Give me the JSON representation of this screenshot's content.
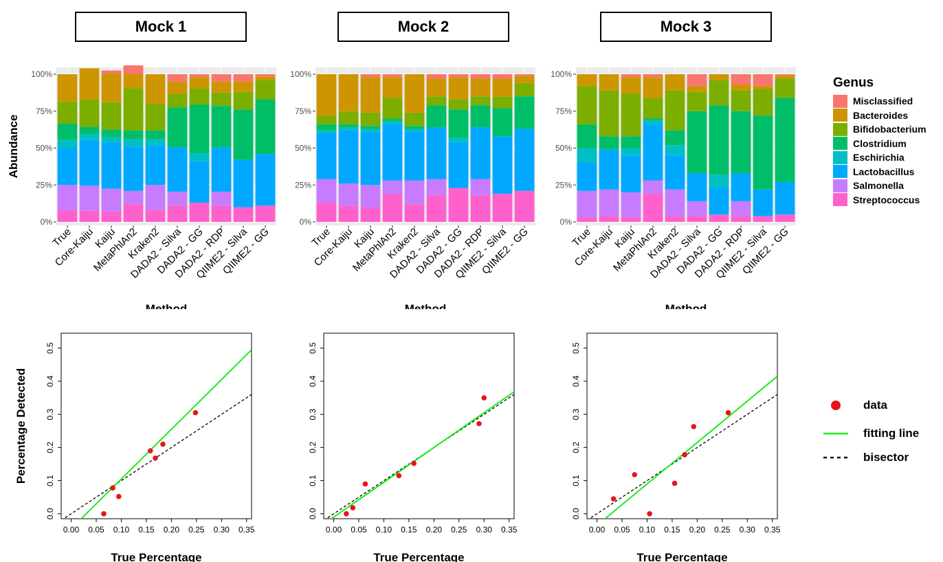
{
  "panels": [
    {
      "title": "Mock 1"
    },
    {
      "title": "Mock 2"
    },
    {
      "title": "Mock 3"
    }
  ],
  "colors": {
    "Misclassified": "#F8766D",
    "Bacteroides": "#CD9600",
    "Bifidobacterium": "#7CAE00",
    "Clostridium": "#00BE67",
    "Eschirichia": "#00BFC4",
    "Lactobacillus": "#00A9FF",
    "Salmonella": "#C77CFF",
    "Streptococcus": "#FF61CC",
    "points": "#e8141a",
    "fit_line": "#1aeb1a",
    "bisector": "#000000"
  },
  "legend": {
    "title": "Genus",
    "items": [
      "Misclassified",
      "Bacteroides",
      "Bifidobacterium",
      "Clostridium",
      "Eschirichia",
      "Lactobacillus",
      "Salmonella",
      "Streptococcus"
    ],
    "scatter_items": [
      {
        "label": "data",
        "symbol": "dot"
      },
      {
        "label": "fitting line",
        "symbol": "green-line"
      },
      {
        "label": "bisector",
        "symbol": "dashed-line"
      }
    ]
  },
  "chart_data": [
    {
      "type": "bar",
      "stacked": true,
      "panel": "Mock 1",
      "xlabel": "Method",
      "ylabel": "Abundance",
      "yticks": [
        "0%",
        "25%",
        "50%",
        "75%",
        "100%"
      ],
      "ylim": [
        0,
        1
      ],
      "categories": [
        "True",
        "Core-Kaiju",
        "Kaiju",
        "MetaPhlAn2",
        "Kraken2",
        "DADA2 - Silva",
        "DADA2 - GG",
        "DADA2 - RDP",
        "QIIME2 - Silva",
        "QIIME2 - GG"
      ],
      "series": [
        {
          "name": "Streptococcus",
          "values": [
            0.08,
            0.075,
            0.07,
            0.12,
            0.08,
            0.11,
            0.13,
            0.11,
            0.1,
            0.11
          ]
        },
        {
          "name": "Salmonella",
          "values": [
            0.17,
            0.17,
            0.155,
            0.09,
            0.17,
            0.095,
            0.0,
            0.095,
            0.0,
            0.0
          ]
        },
        {
          "name": "Lactobacillus",
          "values": [
            0.25,
            0.31,
            0.31,
            0.3,
            0.27,
            0.3,
            0.28,
            0.3,
            0.32,
            0.35
          ]
        },
        {
          "name": "Eschirichia",
          "values": [
            0.055,
            0.04,
            0.04,
            0.05,
            0.04,
            0.0,
            0.055,
            0.0,
            0.0,
            0.0
          ]
        },
        {
          "name": "Clostridium",
          "values": [
            0.11,
            0.05,
            0.05,
            0.06,
            0.06,
            0.27,
            0.33,
            0.28,
            0.34,
            0.37
          ]
        },
        {
          "name": "Bifidobacterium",
          "values": [
            0.15,
            0.185,
            0.185,
            0.285,
            0.18,
            0.09,
            0.11,
            0.09,
            0.12,
            0.13
          ]
        },
        {
          "name": "Bacteroides",
          "values": [
            0.185,
            0.21,
            0.195,
            0.095,
            0.2,
            0.085,
            0.075,
            0.075,
            0.07,
            0.025
          ]
        },
        {
          "name": "Misclassified",
          "values": [
            0.0,
            0.0,
            0.02,
            0.06,
            0.0,
            0.05,
            0.02,
            0.05,
            0.05,
            0.015
          ]
        }
      ]
    },
    {
      "type": "bar",
      "stacked": true,
      "panel": "Mock 2",
      "xlabel": "Method",
      "yticks": [
        "0%",
        "25%",
        "50%",
        "75%",
        "100%"
      ],
      "ylim": [
        0,
        1
      ],
      "categories": [
        "True",
        "Core-Kaiju",
        "Kaiju",
        "MetaPhlAn2",
        "Kraken2",
        "DADA2 - Silva",
        "DADA2 - GG",
        "DADA2 - RDP",
        "QIIME2 - Silva",
        "QIIME2 - GG"
      ],
      "series": [
        {
          "name": "Streptococcus",
          "values": [
            0.13,
            0.11,
            0.1,
            0.19,
            0.12,
            0.18,
            0.23,
            0.18,
            0.19,
            0.21
          ]
        },
        {
          "name": "Salmonella",
          "values": [
            0.16,
            0.15,
            0.15,
            0.09,
            0.16,
            0.11,
            0.0,
            0.11,
            0.0,
            0.0
          ]
        },
        {
          "name": "Lactobacillus",
          "values": [
            0.31,
            0.36,
            0.36,
            0.38,
            0.33,
            0.35,
            0.31,
            0.35,
            0.39,
            0.42
          ]
        },
        {
          "name": "Eschirichia",
          "values": [
            0.02,
            0.02,
            0.02,
            0.02,
            0.02,
            0.0,
            0.03,
            0.0,
            0.0,
            0.0
          ]
        },
        {
          "name": "Clostridium",
          "values": [
            0.04,
            0.02,
            0.02,
            0.02,
            0.02,
            0.15,
            0.19,
            0.15,
            0.19,
            0.22
          ]
        },
        {
          "name": "Bifidobacterium",
          "values": [
            0.06,
            0.09,
            0.09,
            0.14,
            0.09,
            0.06,
            0.07,
            0.06,
            0.08,
            0.09
          ]
        },
        {
          "name": "Bacteroides",
          "values": [
            0.28,
            0.25,
            0.24,
            0.14,
            0.26,
            0.12,
            0.15,
            0.12,
            0.12,
            0.05
          ]
        },
        {
          "name": "Misclassified",
          "values": [
            0.0,
            0.0,
            0.02,
            0.02,
            0.0,
            0.03,
            0.02,
            0.03,
            0.03,
            0.01
          ]
        }
      ]
    },
    {
      "type": "bar",
      "stacked": true,
      "panel": "Mock 3",
      "xlabel": "Method",
      "yticks": [
        "0%",
        "25%",
        "50%",
        "75%",
        "100%"
      ],
      "ylim": [
        0,
        1
      ],
      "categories": [
        "True",
        "Core-Kaiju",
        "Kaiju",
        "MetaPhlAn2",
        "Kraken2",
        "DADA2 - Silva",
        "DADA2 - GG",
        "DADA2 - RDP",
        "QIIME2 - Silva",
        "QIIME2 - GG"
      ],
      "series": [
        {
          "name": "Streptococcus",
          "values": [
            0.03,
            0.04,
            0.03,
            0.19,
            0.04,
            0.04,
            0.05,
            0.04,
            0.04,
            0.05
          ]
        },
        {
          "name": "Salmonella",
          "values": [
            0.18,
            0.18,
            0.17,
            0.09,
            0.18,
            0.1,
            0.0,
            0.1,
            0.0,
            0.0
          ]
        },
        {
          "name": "Lactobacillus",
          "values": [
            0.19,
            0.27,
            0.25,
            0.38,
            0.23,
            0.19,
            0.18,
            0.19,
            0.18,
            0.22
          ]
        },
        {
          "name": "Eschirichia",
          "values": [
            0.1,
            0.0,
            0.05,
            0.03,
            0.07,
            0.0,
            0.09,
            0.0,
            0.0,
            0.0
          ]
        },
        {
          "name": "Clostridium",
          "values": [
            0.16,
            0.09,
            0.08,
            0.01,
            0.1,
            0.42,
            0.47,
            0.42,
            0.5,
            0.57
          ]
        },
        {
          "name": "Bifidobacterium",
          "values": [
            0.26,
            0.31,
            0.29,
            0.14,
            0.27,
            0.13,
            0.17,
            0.14,
            0.18,
            0.13
          ]
        },
        {
          "name": "Bacteroides",
          "values": [
            0.08,
            0.11,
            0.11,
            0.14,
            0.11,
            0.04,
            0.04,
            0.04,
            0.02,
            0.02
          ]
        },
        {
          "name": "Misclassified",
          "values": [
            0.0,
            0.0,
            0.02,
            0.02,
            0.0,
            0.08,
            0.0,
            0.07,
            0.08,
            0.01
          ]
        }
      ]
    },
    {
      "type": "scatter",
      "panel": "Mock 1",
      "xlabel": "True Percentage",
      "ylabel": "Percentage Detected",
      "xlim": [
        -0.02,
        0.36
      ],
      "ylim": [
        -0.015,
        0.545
      ],
      "xticks": [
        "0.00",
        "0.05",
        "0.10",
        "0.15",
        "0.20",
        "0.25",
        "0.30",
        "0.35"
      ],
      "yticks": [
        "0.0",
        "0.1",
        "0.2",
        "0.3",
        "0.4",
        "0.5"
      ],
      "x": [
        0.065,
        0.083,
        0.095,
        0.158,
        0.168,
        0.183,
        0.248
      ],
      "y": [
        0.0,
        0.078,
        0.052,
        0.19,
        0.168,
        0.21,
        0.305
      ],
      "fit": {
        "slope": 1.5,
        "intercept": -0.045
      },
      "bisector": {
        "slope": 1,
        "intercept": 0
      },
      "grid": false
    },
    {
      "type": "scatter",
      "panel": "Mock 2",
      "xlabel": "True Percentage",
      "xlim": [
        -0.02,
        0.36
      ],
      "ylim": [
        -0.015,
        0.545
      ],
      "xticks": [
        "0.00",
        "0.05",
        "0.10",
        "0.15",
        "0.20",
        "0.25",
        "0.30",
        "0.35"
      ],
      "yticks": [
        "0.0",
        "0.1",
        "0.2",
        "0.3",
        "0.4",
        "0.5"
      ],
      "x": [
        0.025,
        0.038,
        0.063,
        0.13,
        0.16,
        0.29,
        0.3
      ],
      "y": [
        0.0,
        0.018,
        0.09,
        0.115,
        0.152,
        0.272,
        0.35
      ],
      "fit": {
        "slope": 1.05,
        "intercept": -0.01
      },
      "bisector": {
        "slope": 1,
        "intercept": 0
      },
      "grid": false
    },
    {
      "type": "scatter",
      "panel": "Mock 3",
      "xlabel": "True Percentage",
      "xlim": [
        -0.02,
        0.36
      ],
      "ylim": [
        -0.015,
        0.545
      ],
      "xticks": [
        "0.00",
        "0.05",
        "0.10",
        "0.15",
        "0.20",
        "0.25",
        "0.30",
        "0.35"
      ],
      "yticks": [
        "0.0",
        "0.1",
        "0.2",
        "0.3",
        "0.4",
        "0.5"
      ],
      "x": [
        0.033,
        0.075,
        0.105,
        0.155,
        0.175,
        0.193,
        0.262
      ],
      "y": [
        0.045,
        0.118,
        0.0,
        0.092,
        0.178,
        0.263,
        0.305
      ],
      "fit": {
        "slope": 1.25,
        "intercept": -0.035
      },
      "bisector": {
        "slope": 1,
        "intercept": 0
      },
      "grid": false
    }
  ]
}
